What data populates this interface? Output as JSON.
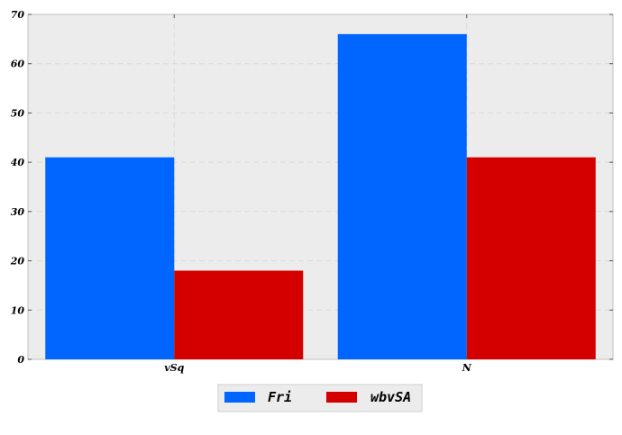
{
  "chart_data": {
    "type": "bar",
    "categories": [
      "vSq",
      "N"
    ],
    "series": [
      {
        "name": "Fri",
        "values": [
          41,
          66
        ],
        "color": "#0066ff"
      },
      {
        "name": "wbvSA",
        "values": [
          18,
          41
        ],
        "color": "#d40000"
      }
    ],
    "title": "",
    "xlabel": "",
    "ylabel": "",
    "ylim": [
      0,
      70
    ],
    "yticks": [
      0,
      10,
      20,
      30,
      40,
      50,
      60,
      70
    ],
    "grid": true,
    "legend_position": "bottom-center"
  }
}
